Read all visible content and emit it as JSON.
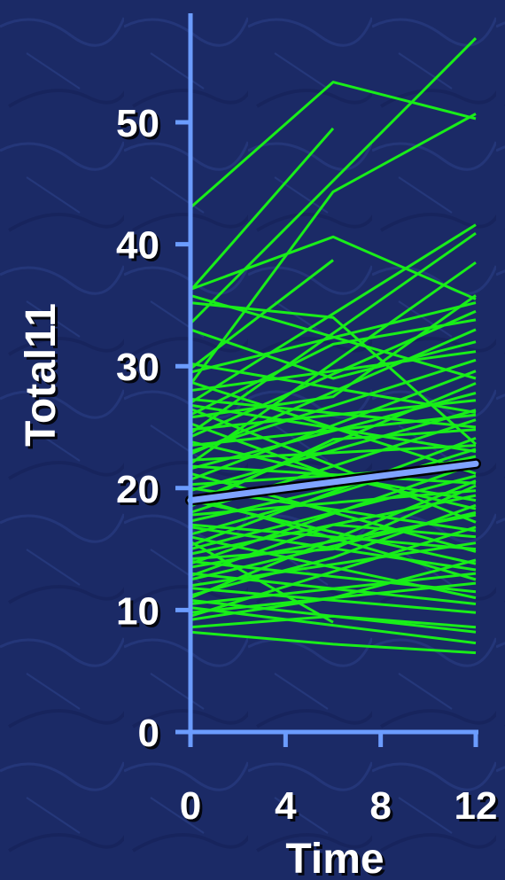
{
  "chart_data": {
    "type": "line",
    "title": "",
    "xlabel": "Time",
    "ylabel": "Total11",
    "x_ticks": [
      0,
      4,
      8,
      12
    ],
    "y_ticks": [
      0,
      10,
      20,
      30,
      40,
      50
    ],
    "xlim": [
      0,
      12
    ],
    "ylim": [
      0,
      55
    ],
    "grid": false,
    "colors": {
      "individual": "#19ee19",
      "mean": "#7fa3ff",
      "axis": "#6b9cff",
      "background": "#1b2a66"
    },
    "mean_line": {
      "x": [
        0,
        12
      ],
      "y": [
        19.0,
        22.0
      ]
    },
    "series": [
      {
        "x": [
          0,
          6,
          12
        ],
        "y": [
          43.0,
          53.3,
          50.3
        ]
      },
      {
        "x": [
          0,
          12
        ],
        "y": [
          33.5,
          56.9
        ]
      },
      {
        "x": [
          0,
          6
        ],
        "y": [
          36.2,
          49.5
        ]
      },
      {
        "x": [
          0,
          6,
          12
        ],
        "y": [
          28.5,
          44.3,
          50.7
        ]
      },
      {
        "x": [
          0,
          6,
          12
        ],
        "y": [
          36.3,
          40.6,
          35.5
        ]
      },
      {
        "x": [
          0,
          6
        ],
        "y": [
          29.8,
          38.7
        ]
      },
      {
        "x": [
          0,
          12
        ],
        "y": [
          27.0,
          41.6
        ]
      },
      {
        "x": [
          0,
          12
        ],
        "y": [
          24.5,
          40.9
        ]
      },
      {
        "x": [
          0,
          12
        ],
        "y": [
          22.0,
          38.5
        ]
      },
      {
        "x": [
          0,
          6,
          12
        ],
        "y": [
          35.2,
          34.0,
          23.6
        ]
      },
      {
        "x": [
          0,
          12
        ],
        "y": [
          35.8,
          29.0
        ]
      },
      {
        "x": [
          0,
          12
        ],
        "y": [
          29.5,
          35.2
        ]
      },
      {
        "x": [
          0,
          6,
          12
        ],
        "y": [
          26.0,
          31.8,
          33.8
        ]
      },
      {
        "x": [
          0,
          12
        ],
        "y": [
          24.2,
          34.5
        ]
      },
      {
        "x": [
          0,
          12
        ],
        "y": [
          28.7,
          21.2
        ]
      },
      {
        "x": [
          0,
          12
        ],
        "y": [
          23.0,
          30.5
        ]
      },
      {
        "x": [
          0,
          12
        ],
        "y": [
          21.6,
          27.8
        ]
      },
      {
        "x": [
          0,
          12
        ],
        "y": [
          27.3,
          25.0
        ]
      },
      {
        "x": [
          0,
          6,
          12
        ],
        "y": [
          25.3,
          21.0,
          19.0
        ]
      },
      {
        "x": [
          0,
          12
        ],
        "y": [
          20.7,
          29.6
        ]
      },
      {
        "x": [
          0,
          12
        ],
        "y": [
          19.8,
          26.4
        ]
      },
      {
        "x": [
          0,
          6,
          12
        ],
        "y": [
          18.5,
          24.0,
          24.8
        ]
      },
      {
        "x": [
          0,
          12
        ],
        "y": [
          26.5,
          17.2
        ]
      },
      {
        "x": [
          0,
          12
        ],
        "y": [
          22.8,
          33.0
        ]
      },
      {
        "x": [
          0,
          12
        ],
        "y": [
          17.3,
          22.6
        ]
      },
      {
        "x": [
          0,
          6,
          12
        ],
        "y": [
          16.2,
          19.5,
          23.2
        ]
      },
      {
        "x": [
          0,
          12
        ],
        "y": [
          15.0,
          21.0
        ]
      },
      {
        "x": [
          0,
          12
        ],
        "y": [
          23.8,
          18.3
        ]
      },
      {
        "x": [
          0,
          6,
          12
        ],
        "y": [
          14.2,
          15.0,
          20.2
        ]
      },
      {
        "x": [
          0,
          12
        ],
        "y": [
          21.2,
          14.8
        ]
      },
      {
        "x": [
          0,
          12
        ],
        "y": [
          18.0,
          25.6
        ]
      },
      {
        "x": [
          0,
          12
        ],
        "y": [
          13.5,
          17.8
        ]
      },
      {
        "x": [
          0,
          6,
          12
        ],
        "y": [
          12.8,
          17.0,
          16.0
        ]
      },
      {
        "x": [
          0,
          12
        ],
        "y": [
          19.3,
          12.5
        ]
      },
      {
        "x": [
          0,
          12
        ],
        "y": [
          12.0,
          15.5
        ]
      },
      {
        "x": [
          0,
          12
        ],
        "y": [
          16.8,
          13.3
        ]
      },
      {
        "x": [
          0,
          6,
          12
        ],
        "y": [
          11.2,
          14.3,
          18.6
        ]
      },
      {
        "x": [
          0,
          12
        ],
        "y": [
          10.5,
          13.0
        ]
      },
      {
        "x": [
          0,
          6
        ],
        "y": [
          15.6,
          9.0
        ]
      },
      {
        "x": [
          0,
          12
        ],
        "y": [
          9.8,
          12.2
        ]
      },
      {
        "x": [
          0,
          12
        ],
        "y": [
          14.0,
          11.5
        ]
      },
      {
        "x": [
          0,
          6,
          12
        ],
        "y": [
          9.2,
          11.0,
          14.1
        ]
      },
      {
        "x": [
          0,
          12
        ],
        "y": [
          11.8,
          9.8
        ]
      },
      {
        "x": [
          0,
          6,
          12
        ],
        "y": [
          8.6,
          9.5,
          8.6
        ]
      },
      {
        "x": [
          0,
          6,
          12
        ],
        "y": [
          8.2,
          7.2,
          6.5
        ]
      },
      {
        "x": [
          0,
          12
        ],
        "y": [
          10.2,
          7.3
        ]
      },
      {
        "x": [
          0,
          12
        ],
        "y": [
          13.0,
          10.5
        ]
      },
      {
        "x": [
          0,
          12
        ],
        "y": [
          20.0,
          16.5
        ]
      },
      {
        "x": [
          0,
          12
        ],
        "y": [
          17.8,
          19.8
        ]
      },
      {
        "x": [
          0,
          12
        ],
        "y": [
          24.8,
          27.2
        ]
      },
      {
        "x": [
          0,
          12
        ],
        "y": [
          15.3,
          24.1
        ]
      },
      {
        "x": [
          0,
          12
        ],
        "y": [
          28.0,
          31.2
        ]
      },
      {
        "x": [
          0,
          12
        ],
        "y": [
          22.3,
          23.5
        ]
      },
      {
        "x": [
          0,
          12
        ],
        "y": [
          30.2,
          26.2
        ]
      },
      {
        "x": [
          0,
          6,
          12
        ],
        "y": [
          33.0,
          29.0,
          32.0
        ]
      },
      {
        "x": [
          0,
          12
        ],
        "y": [
          18.8,
          28.6
        ]
      },
      {
        "x": [
          0,
          12
        ],
        "y": [
          13.8,
          22.0
        ]
      },
      {
        "x": [
          0,
          12
        ],
        "y": [
          11.0,
          20.6
        ]
      },
      {
        "x": [
          0,
          12
        ],
        "y": [
          9.5,
          16.8
        ]
      },
      {
        "x": [
          0,
          6,
          12
        ],
        "y": [
          25.8,
          27.5,
          35.8
        ]
      },
      {
        "x": [
          0,
          12
        ],
        "y": [
          16.0,
          11.0
        ]
      },
      {
        "x": [
          0,
          12
        ],
        "y": [
          20.3,
          21.8
        ]
      },
      {
        "x": [
          0,
          12
        ],
        "y": [
          26.8,
          23.0
        ]
      },
      {
        "x": [
          0,
          12
        ],
        "y": [
          12.5,
          18.0
        ]
      },
      {
        "x": [
          0,
          12
        ],
        "y": [
          17.0,
          15.0
        ]
      },
      {
        "x": [
          0,
          12
        ],
        "y": [
          14.6,
          19.4
        ]
      },
      {
        "x": [
          0,
          12
        ],
        "y": [
          21.8,
          20.4
        ]
      },
      {
        "x": [
          0,
          12
        ],
        "y": [
          23.5,
          26.0
        ]
      },
      {
        "x": [
          0,
          12
        ],
        "y": [
          19.0,
          13.8
        ]
      },
      {
        "x": [
          0,
          12
        ],
        "y": [
          10.8,
          8.2
        ]
      }
    ]
  }
}
